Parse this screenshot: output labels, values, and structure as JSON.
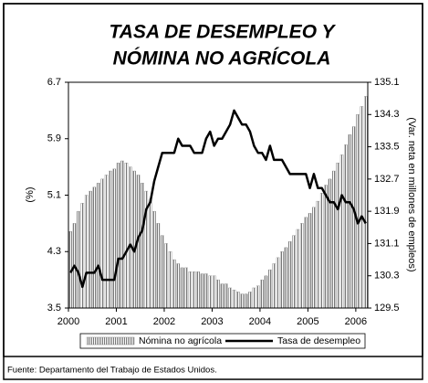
{
  "chart_data": {
    "type": "bar_line",
    "title": [
      "TASA DE DESEMPLEO Y",
      "NÓMINA NO AGRÍCOLA"
    ],
    "ylabel": "(%)",
    "y2label": "(Var. neta en millones de empleos)",
    "source": "Fuente: Departamento del Trabajo de Estados Unidos.",
    "x": [
      2000,
      2000.083,
      2000.167,
      2000.25,
      2000.333,
      2000.417,
      2000.5,
      2000.583,
      2000.667,
      2000.75,
      2000.833,
      2000.917,
      2001,
      2001.083,
      2001.167,
      2001.25,
      2001.333,
      2001.417,
      2001.5,
      2001.583,
      2001.667,
      2001.75,
      2001.833,
      2001.917,
      2002,
      2002.083,
      2002.167,
      2002.25,
      2002.333,
      2002.417,
      2002.5,
      2002.583,
      2002.667,
      2002.75,
      2002.833,
      2002.917,
      2003,
      2003.083,
      2003.167,
      2003.25,
      2003.333,
      2003.417,
      2003.5,
      2003.583,
      2003.667,
      2003.75,
      2003.833,
      2003.917,
      2004,
      2004.083,
      2004.167,
      2004.25,
      2004.333,
      2004.417,
      2004.5,
      2004.583,
      2004.667,
      2004.75,
      2004.833,
      2004.917,
      2005,
      2005.083,
      2005.167,
      2005.25,
      2005.333,
      2005.417,
      2005.5,
      2005.583,
      2005.667,
      2005.75,
      2005.833,
      2005.917,
      2006,
      2006.083,
      2006.167
    ],
    "series": [
      {
        "name": "Nómina no agrícola",
        "type": "bar",
        "axis": "y2",
        "color": "#8a8a8a",
        "values": [
          131.4,
          131.6,
          131.9,
          132.1,
          132.3,
          132.4,
          132.5,
          132.6,
          132.7,
          132.8,
          132.9,
          132.95,
          133.1,
          133.15,
          133.1,
          133.0,
          132.9,
          132.8,
          132.6,
          132.4,
          132.2,
          131.9,
          131.6,
          131.3,
          131.1,
          130.9,
          130.7,
          130.6,
          130.5,
          130.5,
          130.4,
          130.4,
          130.4,
          130.35,
          130.35,
          130.3,
          130.3,
          130.2,
          130.1,
          130.1,
          130.0,
          129.95,
          129.9,
          129.85,
          129.85,
          129.9,
          130.0,
          130.05,
          130.2,
          130.3,
          130.45,
          130.6,
          130.75,
          130.9,
          131.0,
          131.15,
          131.3,
          131.45,
          131.6,
          131.75,
          131.85,
          132.0,
          132.15,
          132.35,
          132.55,
          132.7,
          132.9,
          133.1,
          133.3,
          133.55,
          133.8,
          134.0,
          134.3,
          134.5,
          134.75
        ]
      },
      {
        "name": "Tasa de desempleo",
        "type": "line",
        "color": "#000000",
        "values": [
          4.0,
          4.1,
          4.0,
          3.8,
          4.0,
          4.0,
          4.0,
          4.1,
          3.9,
          3.9,
          3.9,
          3.9,
          4.2,
          4.2,
          4.3,
          4.4,
          4.3,
          4.5,
          4.6,
          4.9,
          5.0,
          5.3,
          5.5,
          5.7,
          5.7,
          5.7,
          5.7,
          5.9,
          5.8,
          5.8,
          5.8,
          5.7,
          5.7,
          5.7,
          5.9,
          6.0,
          5.8,
          5.9,
          5.9,
          6.0,
          6.1,
          6.3,
          6.2,
          6.1,
          6.1,
          6.0,
          5.8,
          5.7,
          5.7,
          5.6,
          5.8,
          5.6,
          5.6,
          5.6,
          5.5,
          5.4,
          5.4,
          5.4,
          5.4,
          5.4,
          5.2,
          5.4,
          5.2,
          5.2,
          5.1,
          5.0,
          5.0,
          4.9,
          5.1,
          5.0,
          5.0,
          4.9,
          4.7,
          4.8,
          4.7
        ]
      }
    ],
    "xlim": [
      2000,
      2006.25
    ],
    "xticks": [
      2000,
      2001,
      2002,
      2003,
      2004,
      2005,
      2006
    ],
    "ylim": [
      3.5,
      6.7
    ],
    "yticks": [
      3.5,
      4.3,
      5.1,
      5.9,
      6.7
    ],
    "y2lim": [
      129.5,
      135.1
    ],
    "y2ticks": [
      129.5,
      130.3,
      131.1,
      131.9,
      132.7,
      133.5,
      134.3,
      135.1
    ],
    "legend": "bottom"
  }
}
